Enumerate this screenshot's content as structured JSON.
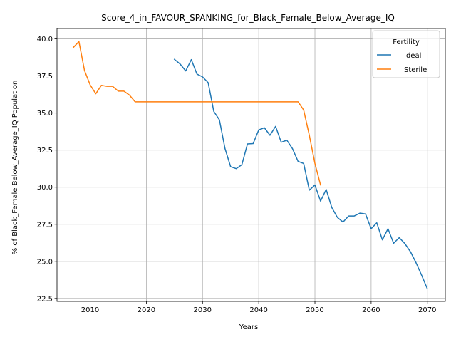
{
  "chart_data": {
    "type": "line",
    "title": "Score_4_in_FAVOUR_SPANKING_for_Black_Female_Below_Average_IQ",
    "xlabel": "Years",
    "ylabel": "% of Black_Female Below_Average_IQ Population",
    "xlim": [
      2004.1,
      2073.2
    ],
    "ylim": [
      22.3,
      40.7
    ],
    "xticks": [
      2010,
      2020,
      2030,
      2040,
      2050,
      2060,
      2070
    ],
    "yticks": [
      22.5,
      25.0,
      27.5,
      30.0,
      32.5,
      35.0,
      37.5,
      40.0
    ],
    "grid": true,
    "legend": {
      "title": "Fertility",
      "placement": "top-right"
    },
    "series": [
      {
        "name": "Ideal",
        "color": "#1f77b4",
        "x": [
          2025,
          2026,
          2027,
          2028,
          2029,
          2030,
          2031,
          2032,
          2033,
          2034,
          2035,
          2036,
          2037,
          2038,
          2039,
          2040,
          2041,
          2042,
          2043,
          2044,
          2045,
          2046,
          2047,
          2048,
          2049,
          2050,
          2051,
          2052,
          2053,
          2054,
          2055,
          2056,
          2057,
          2058,
          2059,
          2060,
          2061,
          2062,
          2063,
          2064,
          2065,
          2066,
          2067,
          2068,
          2069,
          2070
        ],
        "y": [
          38.62,
          38.31,
          37.84,
          38.6,
          37.63,
          37.44,
          37.05,
          35.11,
          34.54,
          32.6,
          31.38,
          31.25,
          31.52,
          32.92,
          32.94,
          33.86,
          34.01,
          33.5,
          34.1,
          33.03,
          33.17,
          32.6,
          31.74,
          31.6,
          29.8,
          30.15,
          29.06,
          29.85,
          28.63,
          27.96,
          27.65,
          28.06,
          28.06,
          28.25,
          28.2,
          27.2,
          27.6,
          26.45,
          27.2,
          26.22,
          26.6,
          26.2,
          25.65,
          24.9,
          24.05,
          23.15
        ]
      },
      {
        "name": "Sterile",
        "color": "#ff7f0e",
        "x": [
          2007,
          2008,
          2009,
          2010,
          2011,
          2012,
          2013,
          2014,
          2015,
          2016,
          2017,
          2018,
          2019,
          2020,
          2021,
          2022,
          2023,
          2024,
          2025,
          2026,
          2027,
          2028,
          2029,
          2030,
          2031,
          2032,
          2033,
          2034,
          2035,
          2036,
          2037,
          2038,
          2039,
          2040,
          2041,
          2042,
          2043,
          2044,
          2045,
          2046,
          2047,
          2048,
          2049,
          2050,
          2051
        ],
        "y": [
          39.42,
          39.82,
          37.86,
          36.9,
          36.3,
          36.87,
          36.8,
          36.8,
          36.48,
          36.48,
          36.21,
          35.76,
          35.76,
          35.76,
          35.76,
          35.76,
          35.76,
          35.76,
          35.76,
          35.76,
          35.76,
          35.76,
          35.76,
          35.76,
          35.76,
          35.76,
          35.76,
          35.76,
          35.76,
          35.76,
          35.76,
          35.76,
          35.76,
          35.76,
          35.76,
          35.76,
          35.76,
          35.76,
          35.76,
          35.76,
          35.76,
          35.2,
          33.5,
          31.6,
          30.15
        ]
      }
    ]
  }
}
